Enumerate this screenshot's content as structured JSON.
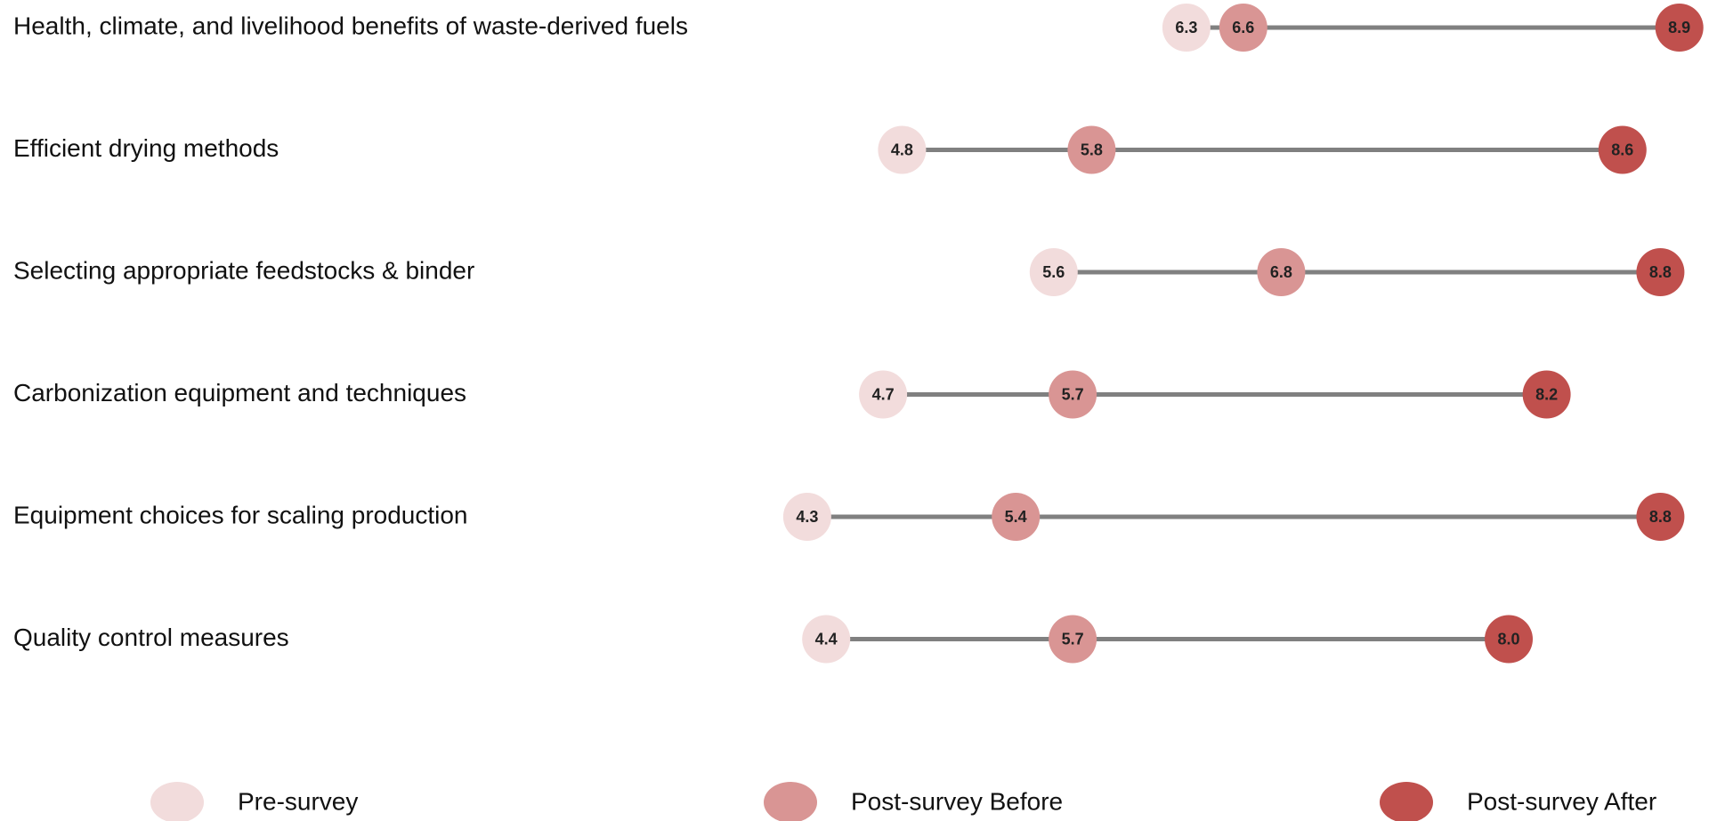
{
  "chart_data": {
    "type": "dumbbell",
    "categories": [
      "Health, climate, and livelihood benefits of waste-derived fuels",
      "Efficient drying methods",
      "Selecting appropriate feedstocks & binder",
      "Carbonization equipment and techniques",
      "Equipment choices for scaling production",
      "Quality control measures"
    ],
    "series": [
      {
        "name": "Pre-survey",
        "color": "#f2dcdc",
        "values": [
          6.3,
          4.8,
          5.6,
          4.7,
          4.3,
          4.4
        ],
        "value_labels": [
          "6.3",
          "4.8",
          "5.6",
          "4.7",
          "4.3",
          "4.4"
        ]
      },
      {
        "name": "Post-survey Before",
        "color": "#d99594",
        "values": [
          6.6,
          5.8,
          6.8,
          5.7,
          5.4,
          5.7
        ],
        "value_labels": [
          "6.6",
          "5.8",
          "6.8",
          "5.7",
          "5.4",
          "5.7"
        ]
      },
      {
        "name": "Post-survey After",
        "color": "#c0504d",
        "values": [
          8.9,
          8.6,
          8.8,
          8.2,
          8.8,
          8.0
        ],
        "value_labels": [
          "8.9",
          "8.6",
          "8.8",
          "8.2",
          "8.8",
          "8.0"
        ]
      }
    ],
    "xlim": [
      0,
      9
    ]
  }
}
